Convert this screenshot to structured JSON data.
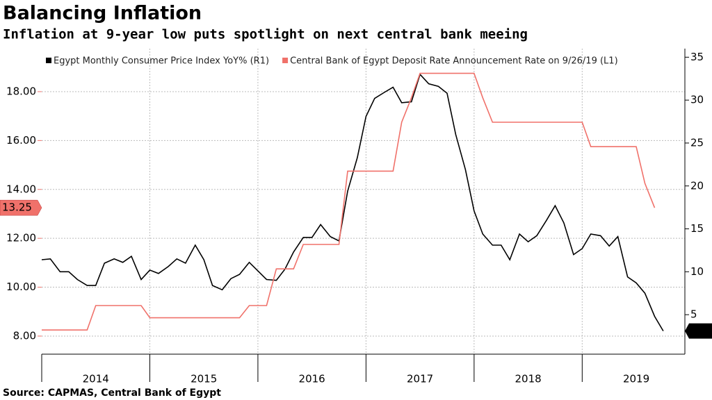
{
  "chart_data": {
    "type": "line",
    "title": "Balancing Inflation",
    "subtitle": "Inflation at 9-year low puts spotlight on next central bank meeing",
    "source": "Source: CAPMAS, Central Bank of Egypt",
    "x": [
      2014,
      2014.08,
      2014.17,
      2014.25,
      2014.33,
      2014.42,
      2014.5,
      2014.58,
      2014.67,
      2014.75,
      2014.83,
      2014.92,
      2015,
      2015.08,
      2015.17,
      2015.25,
      2015.33,
      2015.42,
      2015.5,
      2015.58,
      2015.67,
      2015.75,
      2015.83,
      2015.92,
      2016,
      2016.08,
      2016.17,
      2016.25,
      2016.33,
      2016.42,
      2016.5,
      2016.58,
      2016.67,
      2016.75,
      2016.83,
      2016.92,
      2017,
      2017.08,
      2017.17,
      2017.25,
      2017.33,
      2017.42,
      2017.5,
      2017.58,
      2017.67,
      2017.75,
      2017.83,
      2017.92,
      2018,
      2018.08,
      2018.17,
      2018.25,
      2018.33,
      2018.42,
      2018.5,
      2018.58,
      2018.67,
      2018.75,
      2018.83,
      2018.92,
      2019,
      2019.08,
      2019.17,
      2019.25,
      2019.33,
      2019.42,
      2019.5,
      2019.58,
      2019.67,
      2019.75
    ],
    "series": [
      {
        "name": "Egypt Monthly Consumer Price Index YoY%  (R1)",
        "color": "#000000",
        "axis": "y2",
        "values": [
          11.4,
          11.5,
          10.0,
          10.0,
          9.1,
          8.4,
          8.4,
          11.0,
          11.5,
          11.1,
          11.8,
          9.1,
          10.2,
          9.8,
          10.6,
          11.5,
          11.0,
          13.1,
          11.4,
          8.4,
          7.9,
          9.2,
          9.7,
          11.1,
          10.1,
          9.1,
          9.0,
          10.3,
          12.3,
          14.0,
          14.0,
          15.5,
          14.1,
          13.6,
          19.4,
          23.3,
          28.1,
          30.2,
          30.9,
          31.5,
          29.7,
          29.8,
          33.0,
          31.9,
          31.6,
          30.8,
          26.0,
          21.9,
          17.1,
          14.4,
          13.1,
          13.1,
          11.4,
          14.4,
          13.5,
          14.2,
          16.0,
          17.7,
          15.7,
          12.0,
          12.7,
          14.4,
          14.2,
          13.0,
          14.1,
          9.4,
          8.7,
          7.5,
          4.8,
          3.1
        ]
      },
      {
        "name": "Central Bank of Egypt Deposit Rate Announcement Rate  on 9/26/19 (L1)",
        "color": "#f0716a",
        "axis": "y",
        "values": [
          8.25,
          8.25,
          8.25,
          8.25,
          8.25,
          8.25,
          9.25,
          9.25,
          9.25,
          9.25,
          9.25,
          9.25,
          8.75,
          8.75,
          8.75,
          8.75,
          8.75,
          8.75,
          8.75,
          8.75,
          8.75,
          8.75,
          8.75,
          9.25,
          9.25,
          9.25,
          10.75,
          10.75,
          10.75,
          11.75,
          11.75,
          11.75,
          11.75,
          11.75,
          14.75,
          14.75,
          14.75,
          14.75,
          14.75,
          14.75,
          16.75,
          17.75,
          18.75,
          18.75,
          18.75,
          18.75,
          18.75,
          18.75,
          18.75,
          17.75,
          16.75,
          16.75,
          16.75,
          16.75,
          16.75,
          16.75,
          16.75,
          16.75,
          16.75,
          16.75,
          16.75,
          15.75,
          15.75,
          15.75,
          15.75,
          15.75,
          15.75,
          14.25,
          13.25,
          null
        ]
      }
    ],
    "xlim": [
      2014,
      2019.95
    ],
    "xticks": [
      {
        "value": 2014.5,
        "label": "2014"
      },
      {
        "value": 2015.5,
        "label": "2015"
      },
      {
        "value": 2016.5,
        "label": "2016"
      },
      {
        "value": 2017.5,
        "label": "2017"
      },
      {
        "value": 2018.5,
        "label": "2018"
      },
      {
        "value": 2019.5,
        "label": "2019"
      }
    ],
    "ylim": [
      7.26,
      19.76
    ],
    "yticks": [
      {
        "value": 8,
        "label": "8.00"
      },
      {
        "value": 10,
        "label": "10.00"
      },
      {
        "value": 12,
        "label": "12.00"
      },
      {
        "value": 14,
        "label": "14.00"
      },
      {
        "value": 16,
        "label": "16.00"
      },
      {
        "value": 18,
        "label": "18.00"
      }
    ],
    "y2lim": [
      0.4,
      36
    ],
    "y2ticks": [
      5,
      10,
      15,
      20,
      25,
      30,
      35
    ],
    "grid": true
  }
}
